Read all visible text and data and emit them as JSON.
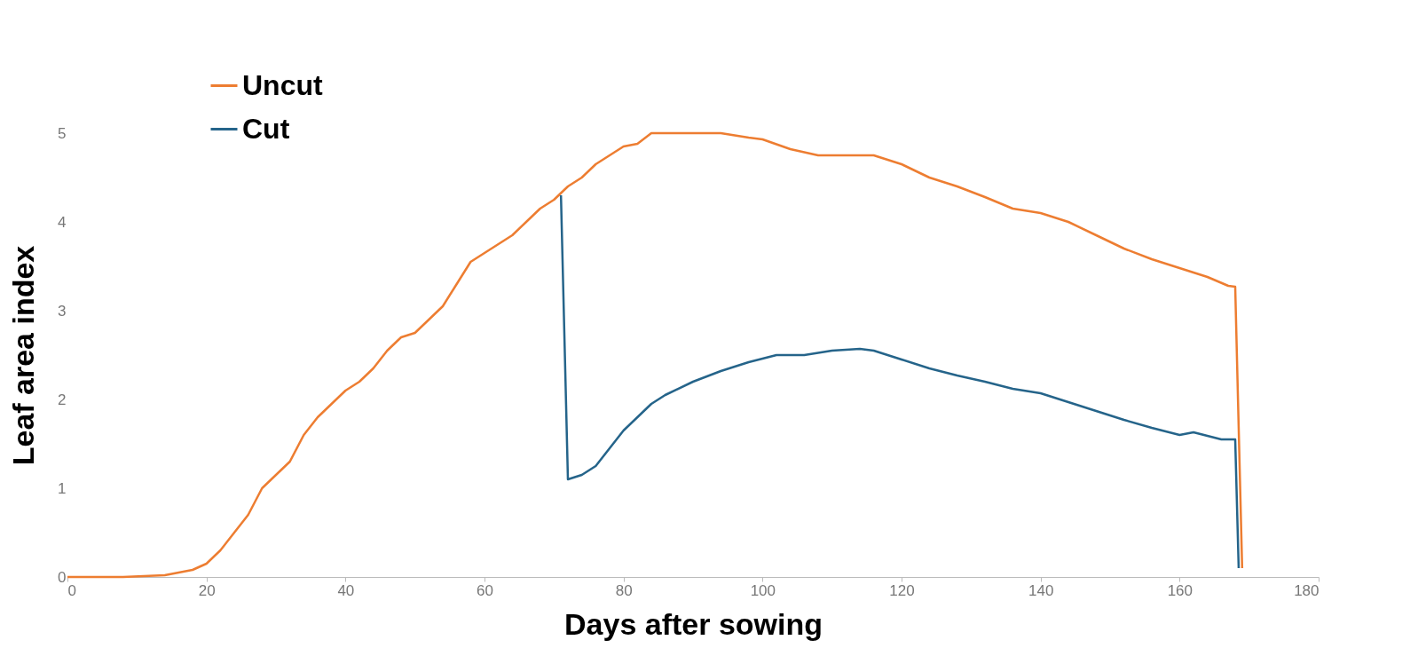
{
  "chart_data": {
    "type": "line",
    "xlabel": "Days after sowing",
    "ylabel": "Leaf area index",
    "xlim": [
      0,
      180
    ],
    "xticks": [
      0,
      20,
      40,
      60,
      80,
      100,
      120,
      140,
      160,
      180
    ],
    "ylim": [
      0,
      5
    ],
    "yticks": [
      0,
      1,
      2,
      3,
      4,
      5
    ],
    "grid": false,
    "legend": "top left",
    "marker": "none",
    "line_style": "solid",
    "series": [
      {
        "name": "Uncut",
        "color": "#ed7d31",
        "x": [
          0,
          8,
          14,
          18,
          20,
          22,
          24,
          26,
          28,
          30,
          32,
          34,
          36,
          38,
          40,
          42,
          44,
          46,
          48,
          50,
          52,
          54,
          56,
          58,
          60,
          62,
          64,
          66,
          68,
          70,
          72,
          74,
          76,
          78,
          80,
          82,
          84,
          86,
          90,
          94,
          98,
          100,
          104,
          108,
          112,
          116,
          120,
          124,
          128,
          132,
          136,
          140,
          144,
          148,
          152,
          156,
          160,
          164,
          167,
          168,
          169
        ],
        "values": [
          0,
          0,
          0.02,
          0.08,
          0.15,
          0.3,
          0.5,
          0.7,
          1.0,
          1.15,
          1.3,
          1.6,
          1.8,
          1.95,
          2.1,
          2.2,
          2.35,
          2.55,
          2.7,
          2.75,
          2.9,
          3.05,
          3.3,
          3.55,
          3.65,
          3.75,
          3.85,
          4.0,
          4.15,
          4.25,
          4.4,
          4.5,
          4.65,
          4.75,
          4.85,
          4.88,
          5.0,
          5.0,
          5.0,
          5.0,
          4.95,
          4.93,
          4.82,
          4.75,
          4.75,
          4.75,
          4.65,
          4.5,
          4.4,
          4.28,
          4.15,
          4.1,
          4.0,
          3.85,
          3.7,
          3.58,
          3.48,
          3.38,
          3.28,
          3.27,
          0.1
        ]
      },
      {
        "name": "Cut",
        "color": "#25648a",
        "x": [
          71,
          72,
          74,
          76,
          78,
          80,
          82,
          84,
          86,
          90,
          94,
          98,
          102,
          106,
          110,
          114,
          116,
          120,
          124,
          128,
          132,
          136,
          140,
          144,
          148,
          152,
          156,
          160,
          162,
          166,
          168,
          168.5
        ],
        "values": [
          4.3,
          1.1,
          1.15,
          1.25,
          1.45,
          1.65,
          1.8,
          1.95,
          2.05,
          2.2,
          2.32,
          2.42,
          2.5,
          2.5,
          2.55,
          2.57,
          2.55,
          2.45,
          2.35,
          2.27,
          2.2,
          2.12,
          2.07,
          1.97,
          1.87,
          1.77,
          1.68,
          1.6,
          1.63,
          1.55,
          1.55,
          0.1
        ]
      }
    ]
  }
}
